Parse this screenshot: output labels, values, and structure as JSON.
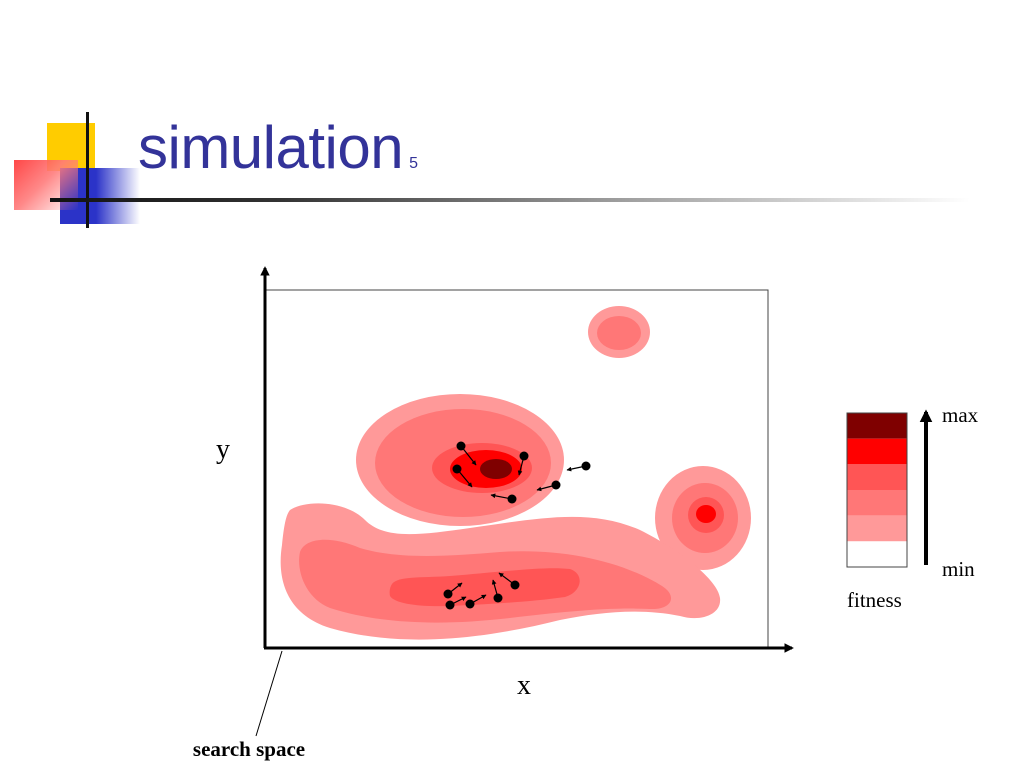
{
  "slide": {
    "title": "simulation",
    "slide_number": "5"
  },
  "diagram": {
    "x_axis_label": "x",
    "y_axis_label": "y",
    "search_space_label": "search space",
    "legend": {
      "max_label": "max",
      "min_label": "min",
      "caption": "fitness",
      "colors": [
        "#7f0000",
        "#ff0000",
        "#ff5555",
        "#ff7777",
        "#ff9999",
        "#ffffff"
      ]
    },
    "fitness_colors": {
      "level1": "#ff9999",
      "level2": "#ff7777",
      "level3": "#ff5555",
      "level4": "#ff0000",
      "level5": "#7f0000"
    }
  }
}
